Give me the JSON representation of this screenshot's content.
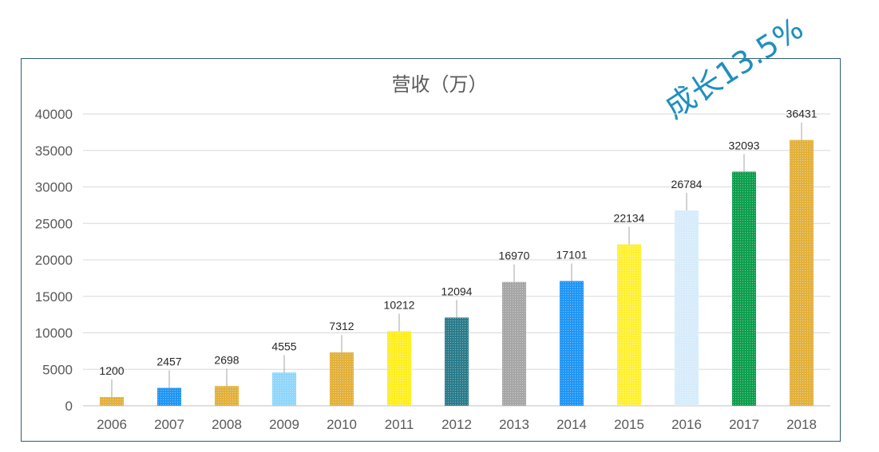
{
  "annotation": "成长13.5%",
  "chart_data": {
    "type": "bar",
    "title": "营收（万）",
    "xlabel": "",
    "ylabel": "",
    "ylim": [
      0,
      40000
    ],
    "yticks": [
      "0",
      "5000",
      "10000",
      "15000",
      "20000",
      "25000",
      "30000",
      "35000",
      "40000"
    ],
    "grid": true,
    "categories": [
      "2006",
      "2007",
      "2008",
      "2009",
      "2010",
      "2011",
      "2012",
      "2013",
      "2014",
      "2015",
      "2016",
      "2017",
      "2018"
    ],
    "values": [
      1200,
      2457,
      2698,
      4555,
      7312,
      10212,
      12094,
      16970,
      17101,
      22134,
      26784,
      32093,
      36431
    ],
    "value_labels": [
      "1200",
      "2457",
      "2698",
      "4555",
      "7312",
      "10212",
      "12094",
      "16970",
      "17101",
      "22134",
      "26784",
      "32093",
      "36431"
    ],
    "bar_colors": [
      "#e2b13c",
      "#2196f3",
      "#e2b13c",
      "#8fd6fa",
      "#e2b13c",
      "#ffee22",
      "#2b7c8c",
      "#a6a6a6",
      "#2196f3",
      "#fff035",
      "#d7ecfb",
      "#0e9e4e",
      "#e2b13c"
    ]
  }
}
